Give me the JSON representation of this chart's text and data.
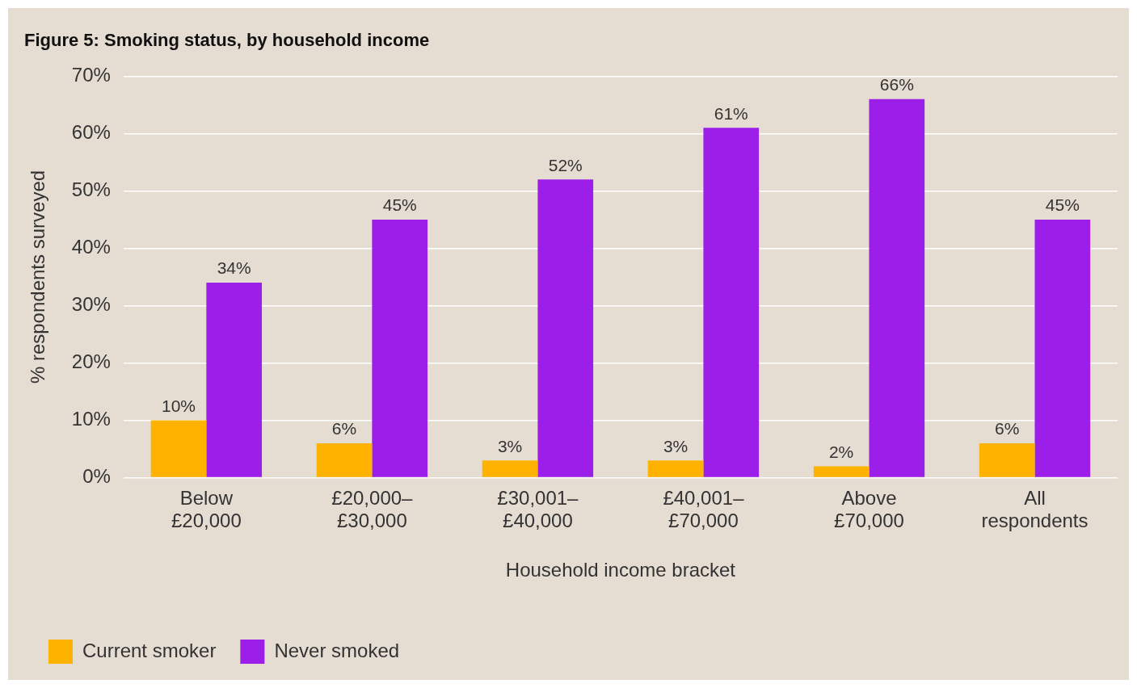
{
  "chart_data": {
    "type": "bar",
    "title": "Figure 5: Smoking status, by household income",
    "xlabel": "Household income bracket",
    "ylabel": "% respondents surveyed",
    "categories": [
      "Below £20,000",
      "£20,000–£30,000",
      "£30,001–£40,000",
      "£40,001–£70,000",
      "Above £70,000",
      "All respondents"
    ],
    "series": [
      {
        "name": "Current smoker",
        "color": "#ffb300",
        "values": [
          10,
          6,
          3,
          3,
          2,
          6
        ],
        "value_labels": [
          "10%",
          "6%",
          "3%",
          "3%",
          "2%",
          "6%"
        ]
      },
      {
        "name": "Never smoked",
        "color": "#9b1fe8",
        "values": [
          34,
          45,
          52,
          61,
          66,
          45
        ],
        "value_labels": [
          "34%",
          "45%",
          "52%",
          "61%",
          "66%",
          "45%"
        ]
      }
    ],
    "ylim": [
      0,
      70
    ],
    "yticks": [
      {
        "value": 0,
        "label": "0%"
      },
      {
        "value": 10,
        "label": "10%"
      },
      {
        "value": 20,
        "label": "20%"
      },
      {
        "value": 30,
        "label": "30%"
      },
      {
        "value": 40,
        "label": "40%"
      },
      {
        "value": 50,
        "label": "50%"
      },
      {
        "value": 60,
        "label": "60%"
      },
      {
        "value": 70,
        "label": "70%"
      }
    ],
    "grid": "y",
    "legend": "bottom left"
  }
}
